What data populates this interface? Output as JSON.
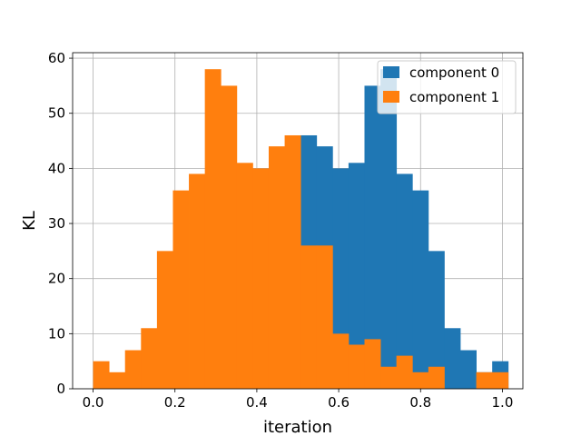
{
  "chart_data": {
    "type": "bar",
    "title": "",
    "xlabel": "iteration",
    "ylabel": "KL",
    "xlim": [
      -0.05,
      1.05
    ],
    "ylim": [
      0,
      61
    ],
    "xticks": [
      "0.0",
      "0.2",
      "0.4",
      "0.6",
      "0.8",
      "1.0"
    ],
    "yticks": [
      "0",
      "10",
      "20",
      "30",
      "40",
      "50",
      "60"
    ],
    "grid": true,
    "legend_position": "top-right",
    "bin_edges": [
      0.0,
      0.039,
      0.078,
      0.117,
      0.156,
      0.195,
      0.234,
      0.273,
      0.312,
      0.351,
      0.39,
      0.429,
      0.468,
      0.507,
      0.546,
      0.585,
      0.624,
      0.663,
      0.702,
      0.741,
      0.78,
      0.819,
      0.858,
      0.897,
      0.936,
      0.975,
      1.014
    ],
    "series": [
      {
        "name": "component 0",
        "color": "#1f77b4",
        "values": [
          0,
          0,
          0,
          0,
          0,
          0,
          0,
          0,
          0,
          0,
          0,
          0,
          0,
          46,
          44,
          40,
          41,
          55,
          58,
          39,
          36,
          25,
          11,
          7,
          3,
          5
        ]
      },
      {
        "name": "component 1",
        "color": "#ff7f0e",
        "values": [
          5,
          3,
          7,
          11,
          25,
          36,
          39,
          58,
          55,
          41,
          40,
          44,
          46,
          26,
          26,
          10,
          8,
          9,
          4,
          6,
          3,
          4,
          0,
          0,
          3,
          3
        ]
      }
    ]
  }
}
